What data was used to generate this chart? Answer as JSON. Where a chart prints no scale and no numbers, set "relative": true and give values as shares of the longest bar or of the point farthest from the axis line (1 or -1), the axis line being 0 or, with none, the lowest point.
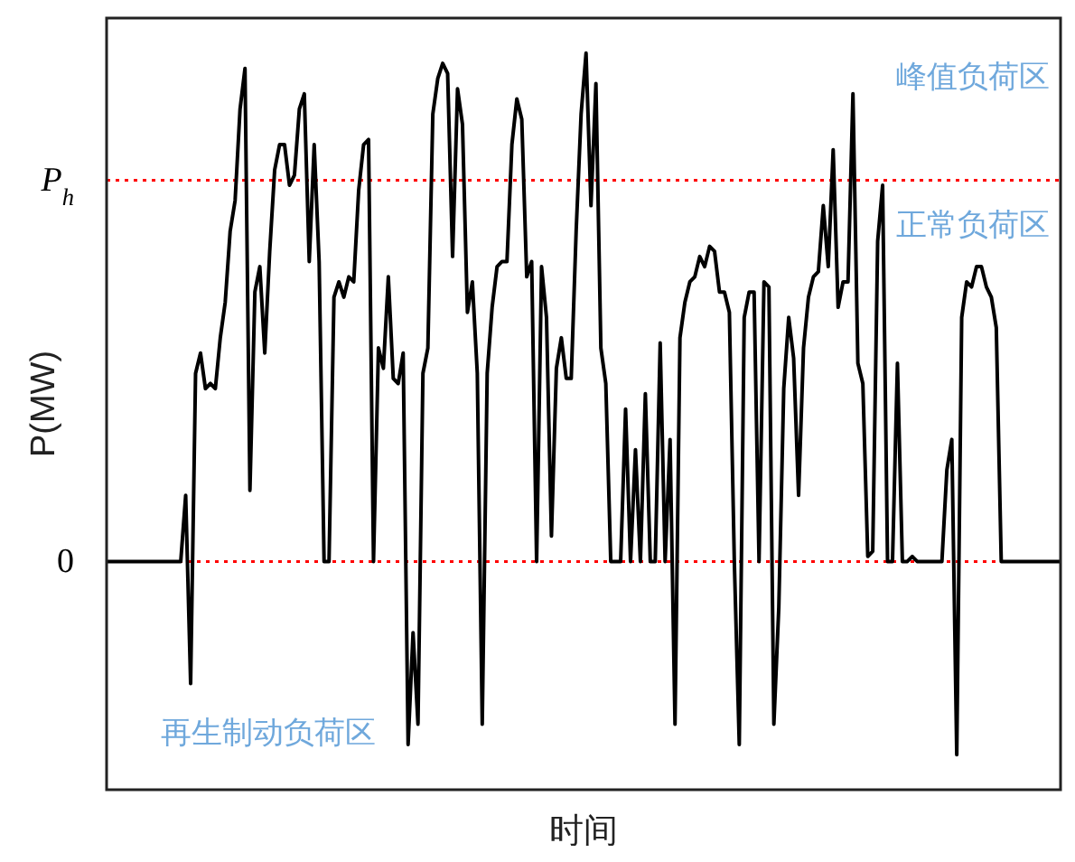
{
  "chart_data": {
    "type": "line",
    "relative": true,
    "xlabel": "时间",
    "ylabel": "P(MW)",
    "marker": "none",
    "line_style": "solid",
    "categories": [
      null,
      null,
      null,
      null,
      null,
      null,
      null,
      null,
      null,
      null,
      null,
      null,
      null,
      null,
      null,
      null,
      null,
      null,
      null,
      null,
      null,
      null,
      null,
      null,
      null,
      null,
      null,
      null,
      null,
      null,
      null,
      null,
      null,
      null,
      null,
      null,
      null,
      null,
      null,
      null,
      null,
      null,
      null,
      null,
      null,
      null,
      null,
      null,
      null,
      null,
      null,
      null,
      null,
      null,
      null,
      null,
      null,
      null,
      null,
      null,
      null,
      null,
      null,
      null,
      null,
      null,
      null,
      null,
      null,
      null,
      null,
      null,
      null,
      null,
      null,
      null,
      null,
      null,
      null,
      null,
      null,
      null,
      null,
      null,
      null,
      null,
      null,
      null,
      null,
      null,
      null,
      null,
      null,
      null,
      null,
      null,
      null,
      null,
      null,
      null,
      null,
      null,
      null,
      null,
      null,
      null,
      null,
      null,
      null,
      null,
      null,
      null,
      null,
      null,
      null,
      null,
      null,
      null,
      null,
      null,
      null,
      null,
      null,
      null,
      null,
      null,
      null,
      null,
      null,
      null,
      null,
      null,
      null,
      null,
      null,
      null,
      null,
      null,
      null,
      null,
      null,
      null,
      null,
      null,
      null,
      null,
      null,
      null,
      null,
      null,
      null,
      null,
      null,
      null,
      null,
      null,
      null,
      null,
      null,
      null,
      null,
      null,
      null,
      null,
      null,
      null,
      null,
      null,
      null,
      null,
      null,
      null,
      null,
      null,
      null,
      null,
      null,
      null,
      null,
      null,
      null,
      null,
      null,
      null,
      null,
      null,
      null,
      null,
      null,
      null,
      null,
      null,
      null,
      null
    ],
    "series": [
      {
        "color": "#000000",
        "values": [
          0,
          0,
          0,
          0,
          0,
          0,
          0,
          0,
          0,
          0,
          0,
          0,
          0,
          0,
          0,
          0,
          0.13,
          -0.24,
          0.37,
          0.41,
          0.34,
          0.35,
          0.34,
          0.44,
          0.51,
          0.65,
          0.71,
          0.89,
          0.97,
          0.14,
          0.53,
          0.58,
          0.41,
          0.61,
          0.77,
          0.82,
          0.82,
          0.74,
          0.76,
          0.89,
          0.92,
          0.59,
          0.82,
          0.59,
          0,
          0,
          0.52,
          0.55,
          0.52,
          0.56,
          0.55,
          0.73,
          0.82,
          0.83,
          0,
          0.42,
          0.38,
          0.56,
          0.36,
          0.35,
          0.41,
          -0.36,
          -0.14,
          -0.32,
          0.37,
          0.42,
          0.88,
          0.95,
          0.98,
          0.96,
          0.6,
          0.93,
          0.86,
          0.49,
          0.55,
          0.37,
          -0.32,
          0.37,
          0.5,
          0.58,
          0.59,
          0.59,
          0.82,
          0.91,
          0.87,
          0.56,
          0.59,
          0,
          0.58,
          0.48,
          0.05,
          0.38,
          0.44,
          0.36,
          0.36,
          0.65,
          0.88,
          1.0,
          0.7,
          0.94,
          0.42,
          0.35,
          0,
          0,
          0,
          0.3,
          0,
          0.22,
          0,
          0.33,
          0,
          0,
          0.43,
          0,
          0.24,
          -0.32,
          0.44,
          0.51,
          0.55,
          0.56,
          0.6,
          0.58,
          0.62,
          0.61,
          0.53,
          0.53,
          0.49,
          0,
          -0.36,
          0.48,
          0.53,
          0.53,
          0,
          0.55,
          0.54,
          -0.32,
          -0.09,
          0.34,
          0.48,
          0.4,
          0.13,
          0.42,
          0.52,
          0.56,
          0.57,
          0.7,
          0.58,
          0.81,
          0.5,
          0.55,
          0.55,
          0.92,
          0.39,
          0.35,
          0.01,
          0.02,
          0.63,
          0.74,
          0,
          0,
          0.39,
          0,
          0,
          0.01,
          0,
          0,
          0,
          0,
          0,
          0,
          0.18,
          0.24,
          -0.38,
          0.48,
          0.55,
          0.54,
          0.58,
          0.58,
          0.54,
          0.52,
          0.46,
          0,
          0,
          0,
          0,
          0,
          0,
          0,
          0,
          0,
          0,
          0,
          0,
          0
        ]
      }
    ],
    "ref_lines": [
      {
        "axis": "y",
        "value": 0,
        "label": "0",
        "color": "#ff0000",
        "line_style": "dotted"
      },
      {
        "axis": "y",
        "value": 0.75,
        "label": "P$_{h}$",
        "color": "#ff0000",
        "line_style": "dotted"
      }
    ],
    "annotations": [
      "峰值负荷区",
      "正常负荷区",
      "再生制动负荷区"
    ]
  }
}
